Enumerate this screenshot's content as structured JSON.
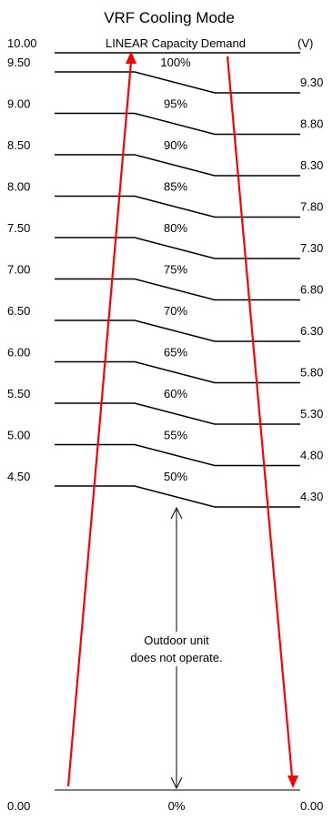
{
  "title": "VRF  Cooling Mode",
  "header": {
    "left_value": "10.00",
    "center_label": "LINEAR Capacity Demand",
    "unit": "(V)"
  },
  "levels": [
    {
      "percent": "100%",
      "left": "9.50",
      "right": "9.30"
    },
    {
      "percent": "95%",
      "left": "9.00",
      "right": "8.80"
    },
    {
      "percent": "90%",
      "left": "8.50",
      "right": "8.30"
    },
    {
      "percent": "85%",
      "left": "8.00",
      "right": "7.80"
    },
    {
      "percent": "80%",
      "left": "7.50",
      "right": "7.30"
    },
    {
      "percent": "75%",
      "left": "7.00",
      "right": "6.80"
    },
    {
      "percent": "70%",
      "left": "6.50",
      "right": "6.30"
    },
    {
      "percent": "65%",
      "left": "6.00",
      "right": "5.80"
    },
    {
      "percent": "60%",
      "left": "5.50",
      "right": "5.30"
    },
    {
      "percent": "55%",
      "left": "5.00",
      "right": "4.80"
    },
    {
      "percent": "50%",
      "left": "4.50",
      "right": "4.30"
    }
  ],
  "note": {
    "line1": "Outdoor unit",
    "line2": "does not operate."
  },
  "bottom": {
    "left": "0.00",
    "percent": "0%",
    "right": "0.00"
  },
  "colors": {
    "arrow": "#ff0000",
    "line": "#000000"
  }
}
